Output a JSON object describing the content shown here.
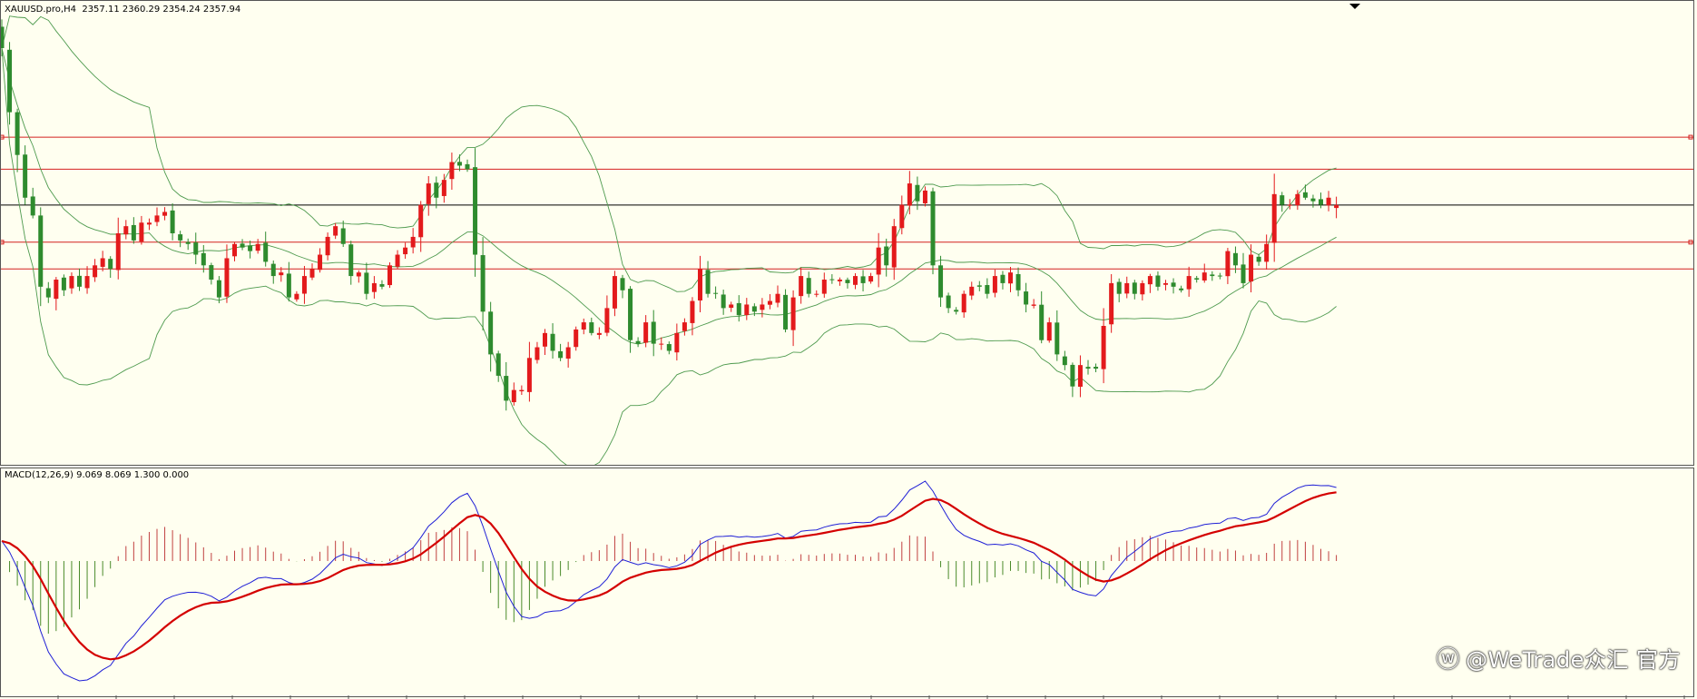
{
  "header": {
    "symbol_info": "XAUUSD.pro,H4  2357.11 2360.29 2354.24 2357.94",
    "macd_info": "MACD(12,26,9) 9.069 8.069 1.300 0.000"
  },
  "watermark": {
    "icon": "weibo-icon",
    "text": "@WeTrade众汇 官方"
  },
  "colors": {
    "background": "#fffff0",
    "bull_candle": "#e31a1c",
    "bear_candle": "#2e8b2e",
    "bollinger": "#4e9a4e",
    "level_line": "#d42020",
    "price_line": "#000000",
    "macd_line": "#1f1fd6",
    "signal_line": "#d40000",
    "hist_pos": "#c04040",
    "hist_neg": "#4a8a2a"
  },
  "chart_data": [
    {
      "type": "candlestick",
      "symbol": "XAUUSD.pro",
      "timeframe": "H4",
      "ohlc_last": {
        "open": 2357.11,
        "high": 2360.29,
        "low": 2354.24,
        "close": 2357.94
      },
      "ylim": [
        2285,
        2415
      ],
      "horizontal_levels": [
        2377,
        2368,
        2347.5,
        2340
      ],
      "current_price": 2357.94,
      "closes": [
        2402,
        2384,
        2372,
        2360,
        2355,
        2335,
        2332,
        2337,
        2334,
        2338,
        2335,
        2338,
        2341,
        2343,
        2340,
        2350,
        2352,
        2348,
        2353,
        2353,
        2355,
        2356,
        2350,
        2348,
        2347,
        2344,
        2341,
        2337,
        2332,
        2343,
        2347,
        2346,
        2345,
        2347,
        2342,
        2338,
        2339,
        2332,
        2333,
        2338,
        2340,
        2344,
        2349,
        2352,
        2347,
        2338,
        2339,
        2333,
        2336,
        2335,
        2341,
        2344,
        2346,
        2349,
        2358,
        2364,
        2360,
        2365,
        2370,
        2369,
        2368,
        2344,
        2328,
        2316,
        2310,
        2303,
        2306,
        2306,
        2315,
        2318,
        2322,
        2317,
        2315,
        2318,
        2323,
        2325,
        2322,
        2322,
        2329,
        2338,
        2334,
        2320,
        2319,
        2325,
        2319,
        2319,
        2317,
        2322,
        2325,
        2331,
        2340,
        2333,
        2333,
        2329,
        2330,
        2327,
        2330,
        2328,
        2330,
        2331,
        2333,
        2323,
        2332,
        2338,
        2333,
        2333,
        2337,
        2337,
        2337,
        2336,
        2338,
        2336,
        2338,
        2346,
        2341,
        2352,
        2358,
        2364,
        2359,
        2362,
        2341,
        2332,
        2329,
        2328,
        2333,
        2335,
        2335,
        2333,
        2338,
        2336,
        2339,
        2334,
        2330,
        2330,
        2320,
        2325,
        2316,
        2313,
        2307,
        2313,
        2312,
        2312,
        2324,
        2336,
        2333,
        2336,
        2333,
        2336,
        2338,
        2335,
        2336,
        2335,
        2334,
        2338,
        2337,
        2339,
        2338,
        2338,
        2345,
        2341,
        2336,
        2344,
        2342,
        2347,
        2361,
        2358,
        2358,
        2361,
        2360,
        2359,
        2358,
        2360,
        2357.94
      ],
      "bollinger": {
        "period": 20,
        "deviations": 2
      }
    },
    {
      "type": "macd",
      "params": [
        12,
        26,
        9
      ],
      "values": {
        "macd": 9.069,
        "signal": 8.069,
        "histogram": 1.3,
        "extra": 0.0
      }
    }
  ]
}
